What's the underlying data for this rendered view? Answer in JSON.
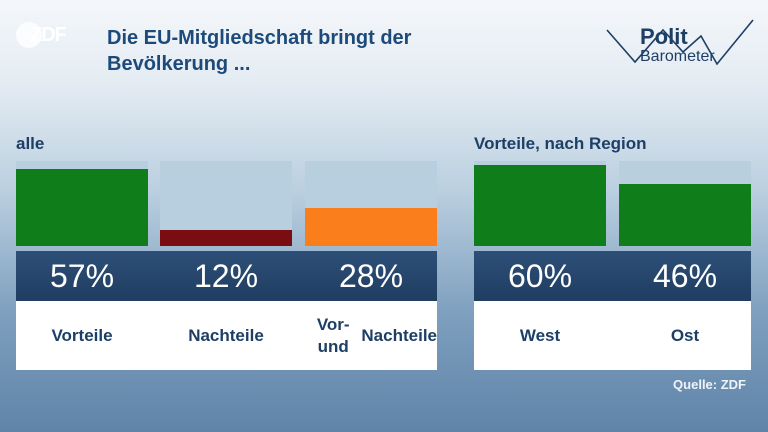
{
  "header": {
    "logo_text": "ZDF",
    "title_line1": "Die EU-Mitgliedschaft bringt der",
    "title_line2": "Bevölkerung ...",
    "brand_line1": "Polit",
    "brand_line2": "Barometer"
  },
  "groups": {
    "left_label": "alle",
    "right_label": "Vorteile, nach Region"
  },
  "source": "Quelle: ZDF",
  "chart_data": {
    "type": "bar",
    "unit": "%",
    "ylim": [
      0,
      60
    ],
    "categories": [
      "Vorteile",
      "Nachteile",
      "Vor- und Nachteile",
      "West",
      "Ost"
    ],
    "values": [
      57,
      12,
      28,
      60,
      46
    ],
    "value_labels": [
      "57%",
      "12%",
      "28%",
      "60%",
      "46%"
    ],
    "colors": [
      "#0e7d1a",
      "#7a0d12",
      "#fa7f1c",
      "#0e7d1a",
      "#0e7d1a"
    ],
    "groups": [
      {
        "label": "alle",
        "categories": [
          "Vorteile",
          "Nachteile",
          "Vor- und Nachteile"
        ]
      },
      {
        "label": "Vorteile, nach Region",
        "categories": [
          "West",
          "Ost"
        ]
      }
    ],
    "track_color": "#b8cfe0",
    "grid": false
  }
}
